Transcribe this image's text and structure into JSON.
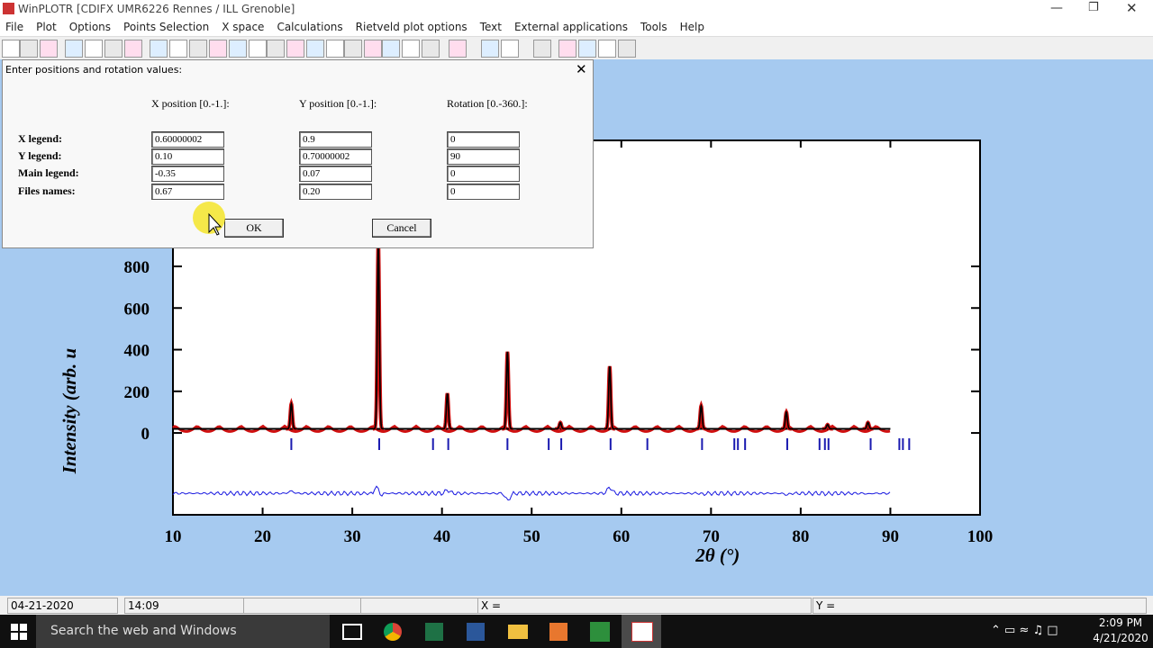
{
  "window": {
    "title": "WinPLOTR [CDIFX UMR6226 Rennes / ILL Grenoble]"
  },
  "menu": [
    "File",
    "Plot",
    "Options",
    "Points Selection",
    "X space",
    "Calculations",
    "Rietveld plot options",
    "Text",
    "External applications",
    "Tools",
    "Help"
  ],
  "plot": {
    "xlabel": "2θ (°)",
    "ylabel": "Intensity (arb. u",
    "xlim": [
      10,
      100
    ],
    "ylim": [
      -393,
      1405
    ],
    "xticks": [
      10,
      20,
      30,
      40,
      50,
      60,
      70,
      80,
      90,
      100
    ],
    "yticks": [
      0,
      200,
      400,
      600,
      800
    ],
    "data_range": [
      10,
      90
    ],
    "background": 20,
    "peaks": {
      "x": [
        23.2,
        32.9,
        40.6,
        47.3,
        53.2,
        58.7,
        68.9,
        78.4,
        83.0,
        87.5
      ],
      "height": [
        120,
        900,
        170,
        370,
        30,
        300,
        110,
        80,
        20,
        30
      ]
    },
    "reflections": [
      23.2,
      33.0,
      39.0,
      40.7,
      47.3,
      51.9,
      53.3,
      58.8,
      62.9,
      69.0,
      72.6,
      73.0,
      73.8,
      78.5,
      82.1,
      82.7,
      83.1,
      87.8,
      91.0,
      91.4,
      92.1
    ],
    "difference_offset": -290
  },
  "dialog": {
    "title": "Enter positions and rotation values:",
    "columns": [
      "X position [0.-1.]:",
      "Y position [0.-1.]:",
      "Rotation [0.-360.]:"
    ],
    "rows": [
      {
        "label": "X legend:",
        "values": [
          "0.60000002",
          "0.9",
          "0"
        ]
      },
      {
        "label": "Y legend:",
        "values": [
          "0.10",
          "0.70000002",
          "90"
        ]
      },
      {
        "label": "Main legend:",
        "values": [
          "-0.35",
          "0.07",
          "0"
        ]
      },
      {
        "label": "Files names:",
        "values": [
          "0.67",
          "0.20",
          "0"
        ]
      }
    ],
    "ok": "OK",
    "cancel": "Cancel"
  },
  "status": {
    "date": "04-21-2020",
    "time": "14:09",
    "x": "X =",
    "y": "Y ="
  },
  "taskbar": {
    "search": "Search the web and Windows",
    "time": "2:09 PM",
    "date": "4/21/2020"
  }
}
